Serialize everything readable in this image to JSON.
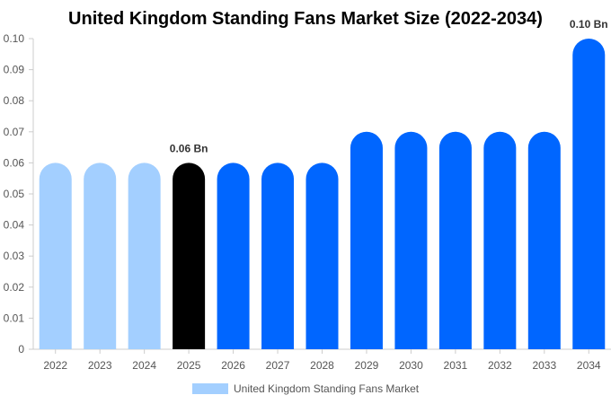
{
  "chart_data": {
    "type": "bar",
    "title": "United Kingdom Standing Fans Market Size (2022-2034)",
    "xlabel": "",
    "ylabel": "",
    "categories": [
      "2022",
      "2023",
      "2024",
      "2025",
      "2026",
      "2027",
      "2028",
      "2029",
      "2030",
      "2031",
      "2032",
      "2033",
      "2034"
    ],
    "series": [
      {
        "name": "United Kingdom Standing Fans Market",
        "values": [
          0.06,
          0.06,
          0.06,
          0.06,
          0.06,
          0.06,
          0.06,
          0.07,
          0.07,
          0.07,
          0.07,
          0.07,
          0.1
        ]
      }
    ],
    "ylim": [
      0,
      0.1
    ],
    "yticks": [
      "0",
      "0.01",
      "0.02",
      "0.03",
      "0.04",
      "0.05",
      "0.06",
      "0.07",
      "0.08",
      "0.09",
      "0.10"
    ],
    "bar_colors": [
      "#a3cfff",
      "#a3cfff",
      "#a3cfff",
      "#000000",
      "#0066ff",
      "#0066ff",
      "#0066ff",
      "#0066ff",
      "#0066ff",
      "#0066ff",
      "#0066ff",
      "#0066ff",
      "#0066ff"
    ],
    "data_labels": [
      {
        "category": "2025",
        "text": "0.06 Bn"
      },
      {
        "category": "2034",
        "text": "0.10 Bn"
      }
    ],
    "legend": {
      "position": "bottom",
      "color": "#a3cfff"
    },
    "grid": false
  }
}
